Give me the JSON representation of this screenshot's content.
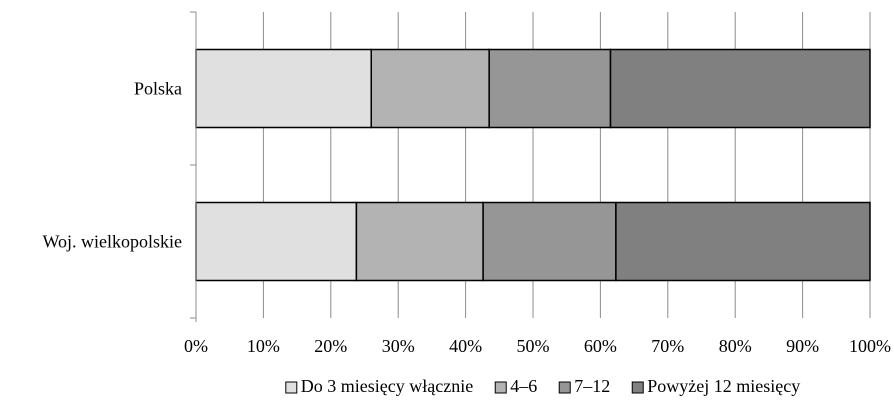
{
  "chart_data": {
    "type": "bar",
    "orientation": "horizontal",
    "stacked": true,
    "normalized_percent": true,
    "categories": [
      "Polska",
      "Woj. wielkopolskie"
    ],
    "series": [
      {
        "name": "Do 3 miesięcy włącznie",
        "values": [
          26.0,
          23.8
        ],
        "color": "#e0e0e0"
      },
      {
        "name": "4–6",
        "values": [
          17.5,
          18.8
        ],
        "color": "#b3b3b3"
      },
      {
        "name": "7–12",
        "values": [
          18.0,
          19.7
        ],
        "color": "#969696"
      },
      {
        "name": "Powyżej 12 miesięcy",
        "values": [
          38.5,
          37.7
        ],
        "color": "#808080"
      }
    ],
    "xlim": [
      0,
      100
    ],
    "x_ticks": [
      "0%",
      "10%",
      "20%",
      "30%",
      "40%",
      "50%",
      "60%",
      "70%",
      "80%",
      "90%",
      "100%"
    ],
    "grid": "vertical",
    "legend_position": "bottom"
  }
}
